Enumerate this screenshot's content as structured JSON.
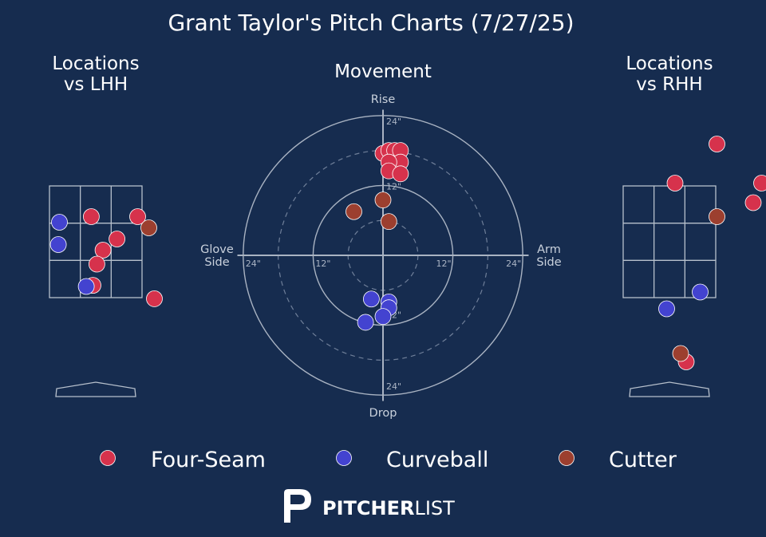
{
  "title": "Grant Taylor's Pitch Charts (7/27/25)",
  "colors": {
    "background": "#162c4f",
    "four_seam": "#d6324c",
    "curveball": "#4343d0",
    "cutter": "#9c3f2f",
    "zone_lines": "#b7c0cc"
  },
  "legend": [
    {
      "name": "Four-Seam",
      "color": "#d6324c"
    },
    {
      "name": "Curveball",
      "color": "#4343d0"
    },
    {
      "name": "Cutter",
      "color": "#9c3f2f"
    }
  ],
  "brand": {
    "bold": "PITCHER",
    "light": "LIST"
  },
  "chart_data": [
    {
      "type": "scatter",
      "title": "Locations\nvs LHH",
      "series": [
        {
          "name": "Four-Seam",
          "points": [
            [
              -0.08,
              2.95
            ],
            [
              0.75,
              2.95
            ],
            [
              0.38,
              2.55
            ],
            [
              0.13,
              2.35
            ],
            [
              0.02,
              2.1
            ],
            [
              -0.05,
              1.72
            ],
            [
              1.05,
              1.48
            ]
          ]
        },
        {
          "name": "Curveball",
          "points": [
            [
              -0.65,
              2.85
            ],
            [
              -0.67,
              2.45
            ],
            [
              -0.17,
              1.7
            ]
          ]
        },
        {
          "name": "Cutter",
          "points": [
            [
              0.95,
              2.75
            ]
          ]
        }
      ]
    },
    {
      "type": "scatter",
      "title": "Movement",
      "axis_labels": {
        "top": "Rise",
        "bottom": "Drop",
        "left": "Glove\nSide",
        "right": "Arm\nSide"
      },
      "ring_labels": [
        "12\"",
        "24\""
      ],
      "xlim": [
        -24,
        24
      ],
      "ylim": [
        -24,
        24
      ],
      "series": [
        {
          "name": "Four-Seam",
          "points": [
            [
              0,
              17.5
            ],
            [
              1,
              18
            ],
            [
              2,
              18
            ],
            [
              3,
              18
            ],
            [
              3,
              16
            ],
            [
              1,
              16
            ],
            [
              1,
              14.5
            ],
            [
              3,
              14
            ]
          ]
        },
        {
          "name": "Curveball",
          "points": [
            [
              -2,
              -7.5
            ],
            [
              1,
              -8
            ],
            [
              1,
              -9
            ],
            [
              0,
              -10.5
            ],
            [
              -3,
              -11.5
            ]
          ]
        },
        {
          "name": "Cutter",
          "points": [
            [
              0,
              9.5
            ],
            [
              -5,
              7.5
            ],
            [
              1,
              5.8
            ]
          ]
        }
      ]
    },
    {
      "type": "scatter",
      "title": "Locations\nvs RHH",
      "series": [
        {
          "name": "Four-Seam",
          "points": [
            [
              0.85,
              4.25
            ],
            [
              0.1,
              3.55
            ],
            [
              1.65,
              3.55
            ],
            [
              1.5,
              3.2
            ],
            [
              0.3,
              0.35
            ]
          ]
        },
        {
          "name": "Curveball",
          "points": [
            [
              0.55,
              1.6
            ],
            [
              -0.05,
              1.3
            ]
          ]
        },
        {
          "name": "Cutter",
          "points": [
            [
              0.85,
              2.95
            ],
            [
              0.2,
              0.5
            ]
          ]
        }
      ]
    }
  ]
}
